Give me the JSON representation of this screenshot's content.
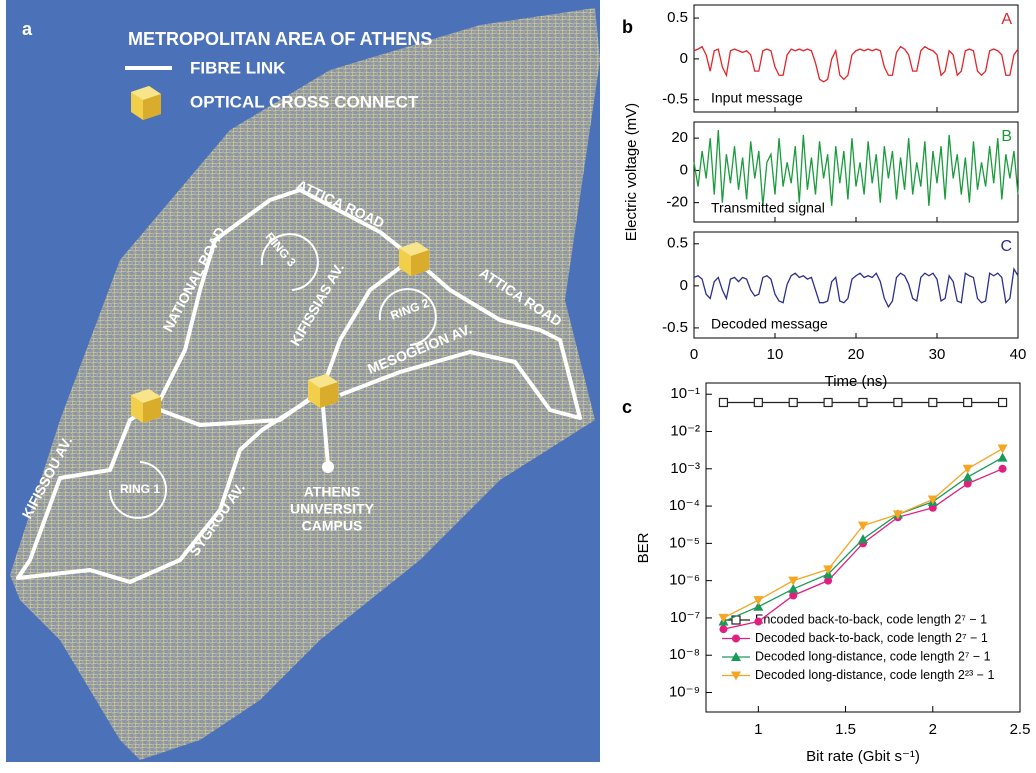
{
  "map": {
    "label": "a",
    "title": "METROPOLITAN AREA OF ATHENS",
    "legend": [
      "FIBRE LINK",
      "OPTICAL CROSS CONNECT"
    ],
    "roads": [
      "ATTICA ROAD",
      "ATTICA ROAD",
      "NATIONAL ROAD",
      "KIFISSIAS AV.",
      "MESOGEION AV.",
      "KIFISSOU AV.",
      "SYGROU AV."
    ],
    "rings": [
      "RING 1",
      "RING 2",
      "RING 3"
    ],
    "campus": [
      "ATHENS",
      "UNIVERSITY",
      "CAMPUS"
    ]
  },
  "chart_data": [
    {
      "type": "line",
      "panel": "b",
      "xlabel": "Time (ns)",
      "ylabel": "Electric voltage (mV)",
      "xlim": [
        0,
        40
      ],
      "xticks": [
        0,
        10,
        20,
        30,
        40
      ],
      "x": [
        0,
        0.5,
        1,
        1.5,
        2,
        2.5,
        3,
        3.5,
        4,
        4.5,
        5,
        5.5,
        6,
        6.5,
        7,
        7.5,
        8,
        8.5,
        9,
        9.5,
        10,
        10.5,
        11,
        11.5,
        12,
        12.5,
        13,
        13.5,
        14,
        14.5,
        15,
        15.5,
        16,
        16.5,
        17,
        17.5,
        18,
        18.5,
        19,
        19.5,
        20,
        20.5,
        21,
        21.5,
        22,
        22.5,
        23,
        23.5,
        24,
        24.5,
        25,
        25.5,
        26,
        26.5,
        27,
        27.5,
        28,
        28.5,
        29,
        29.5,
        30,
        30.5,
        31,
        31.5,
        32,
        32.5,
        33,
        33.5,
        34,
        34.5,
        35,
        35.5,
        36,
        36.5,
        37,
        37.5,
        38,
        38.5,
        39,
        39.5,
        40
      ],
      "subplots": [
        {
          "label": "A",
          "ylim": [
            -0.65,
            0.66
          ],
          "yticks": [
            -0.5,
            0,
            0.5
          ],
          "series": [
            {
              "name": "Input message",
              "color": "#e3262b",
              "values": [
                0.1,
                0.12,
                0.15,
                0.05,
                -0.15,
                0.1,
                0.12,
                -0.1,
                -0.2,
                0.1,
                0.12,
                0.1,
                0.08,
                0.1,
                0.05,
                -0.15,
                -0.15,
                0.1,
                0.12,
                0.1,
                -0.1,
                -0.2,
                -0.2,
                0.05,
                0.12,
                0.1,
                0.12,
                0.1,
                0.12,
                0.1,
                -0.05,
                -0.25,
                -0.28,
                -0.25,
                0,
                0.1,
                -0.2,
                -0.25,
                -0.2,
                0.05,
                0.1,
                0.12,
                0.1,
                0.12,
                0.1,
                0.12,
                0.1,
                -0.1,
                -0.2,
                -0.2,
                0.08,
                0.15,
                0.12,
                0.05,
                -0.15,
                -0.15,
                0.1,
                0.15,
                0.12,
                0.1,
                0.05,
                -0.2,
                -0.15,
                0.1,
                0.05,
                -0.2,
                -0.15,
                0.1,
                0.12,
                0.1,
                -0.15,
                -0.2,
                -0.15,
                0.1,
                0.12,
                0.1,
                0.05,
                -0.2,
                -0.2,
                0.05,
                0.12
              ]
            }
          ]
        },
        {
          "label": "B",
          "ylim": [
            -32,
            30
          ],
          "yticks": [
            -20,
            0,
            20
          ],
          "series": [
            {
              "name": "Transmitted signal",
              "color": "#1a9c3c",
              "values": [
                5,
                -10,
                12,
                -5,
                20,
                -15,
                25,
                -20,
                10,
                -8,
                15,
                -12,
                8,
                -18,
                18,
                -5,
                12,
                -22,
                5,
                10,
                -15,
                20,
                -10,
                5,
                -8,
                15,
                -20,
                22,
                -12,
                8,
                -15,
                18,
                -5,
                10,
                -22,
                15,
                -8,
                12,
                -18,
                20,
                -10,
                5,
                -15,
                18,
                -8,
                10,
                -20,
                15,
                -5,
                12,
                -18,
                8,
                -12,
                20,
                -15,
                5,
                -10,
                18,
                -22,
                12,
                -8,
                15,
                -18,
                22,
                -5,
                10,
                -15,
                8,
                -20,
                18,
                -12,
                5,
                -10,
                15,
                -8,
                20,
                -18,
                10,
                -5,
                12,
                -15
              ]
            }
          ]
        },
        {
          "label": "C",
          "ylim": [
            -0.62,
            0.64
          ],
          "yticks": [
            -0.5,
            0,
            0.5
          ],
          "series": [
            {
              "name": "Decoded message",
              "color": "#2b2f8f",
              "values": [
                0.1,
                0.12,
                0.08,
                -0.1,
                -0.15,
                0.05,
                0.1,
                -0.05,
                -0.15,
                0.08,
                0.1,
                0.05,
                0.1,
                0.08,
                -0.05,
                -0.12,
                -0.1,
                0.1,
                0.12,
                0.08,
                -0.1,
                -0.18,
                -0.2,
                0.02,
                0.12,
                0.15,
                0.1,
                0.12,
                0.08,
                0.1,
                -0.05,
                -0.2,
                -0.2,
                -0.18,
                0.05,
                0.1,
                -0.18,
                -0.2,
                -0.15,
                0.08,
                0.12,
                0.15,
                0.1,
                0.12,
                0.1,
                0.15,
                0.05,
                -0.15,
                -0.25,
                -0.18,
                0.1,
                0.15,
                0.12,
                0.02,
                -0.15,
                -0.18,
                0.1,
                0.15,
                0.12,
                0.15,
                0.08,
                -0.18,
                -0.15,
                0.12,
                0.05,
                -0.18,
                -0.2,
                0.15,
                0.12,
                0.1,
                -0.15,
                -0.2,
                -0.18,
                0.15,
                0.12,
                0.15,
                0.1,
                -0.2,
                -0.15,
                0.2,
                0.12
              ]
            }
          ]
        }
      ]
    },
    {
      "type": "line",
      "panel": "c",
      "xlabel": "Bit rate (Gbit s⁻¹)",
      "ylabel": "BER",
      "yscale": "log",
      "xlim": [
        0.7,
        2.5
      ],
      "xticks": [
        1,
        1.5,
        2,
        2.5
      ],
      "ylim": [
        3e-10,
        0.2
      ],
      "yticks": [
        {
          "value": 0.1,
          "label": "10⁻¹"
        },
        {
          "value": 0.01,
          "label": "10⁻²"
        },
        {
          "value": 0.001,
          "label": "10⁻³"
        },
        {
          "value": 0.0001,
          "label": "10⁻⁴"
        },
        {
          "value": 1e-05,
          "label": "10⁻⁵"
        },
        {
          "value": 1e-06,
          "label": "10⁻⁶"
        },
        {
          "value": 1e-07,
          "label": "10⁻⁷"
        },
        {
          "value": 1e-08,
          "label": "10⁻⁸"
        },
        {
          "value": 1e-09,
          "label": "10⁻⁹"
        }
      ],
      "x": [
        0.8,
        1,
        1.2,
        1.4,
        1.6,
        1.8,
        2,
        2.2,
        2.4
      ],
      "series": [
        {
          "name": "Encoded back-to-back, code length 2⁷ − 1",
          "color": "#222222",
          "marker": "square",
          "values": [
            0.06,
            0.06,
            0.06,
            0.06,
            0.06,
            0.06,
            0.06,
            0.06,
            0.06
          ]
        },
        {
          "name": "Decoded back-to-back, code length 2⁷ − 1",
          "color": "#e0207f",
          "marker": "circle",
          "values": [
            5e-08,
            8e-08,
            4e-07,
            1e-06,
            1e-05,
            5e-05,
            9e-05,
            0.0004,
            0.001
          ]
        },
        {
          "name": "Decoded long-distance, code length 2⁷ − 1",
          "color": "#1a9a5a",
          "marker": "triangle-up",
          "values": [
            8e-08,
            2e-07,
            6e-07,
            1.5e-06,
            1.3e-05,
            6e-05,
            0.00013,
            0.0006,
            0.002
          ]
        },
        {
          "name": "Decoded long-distance, code length 2²³ − 1",
          "color": "#f5a623",
          "marker": "triangle-down",
          "values": [
            1e-07,
            3e-07,
            1e-06,
            2e-06,
            3e-05,
            6e-05,
            0.00015,
            0.001,
            0.0035
          ]
        }
      ]
    }
  ]
}
